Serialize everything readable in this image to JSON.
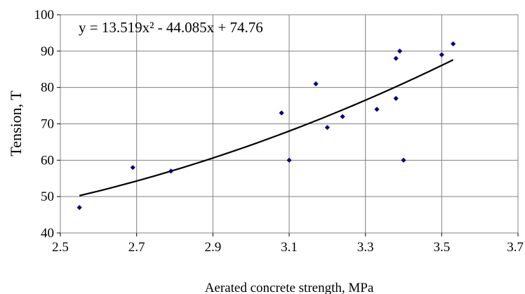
{
  "chart_data": {
    "type": "scatter",
    "title": "",
    "xlabel": "Aerated concrete strength, MPa",
    "ylabel": "Tension, T",
    "xlim": [
      2.5,
      3.7
    ],
    "ylim": [
      40,
      100
    ],
    "xticks": [
      2.5,
      2.7,
      2.9,
      3.1,
      3.3,
      3.5,
      3.7
    ],
    "xtick_labels": [
      "2.5",
      "2.7",
      "2.9",
      "3.1",
      "3.3",
      "3.5",
      "3.7"
    ],
    "yticks": [
      40,
      50,
      60,
      70,
      80,
      90,
      100
    ],
    "ytick_labels": [
      "40",
      "50",
      "60",
      "70",
      "80",
      "90",
      "100"
    ],
    "grid": true,
    "legend": "none",
    "marker_color": "#00007f",
    "trendline_color": "#000000",
    "series": [
      {
        "x": [
          2.55,
          2.69,
          2.79,
          3.08,
          3.1,
          3.17,
          3.2,
          3.24,
          3.33,
          3.38,
          3.38,
          3.39,
          3.4,
          3.5,
          3.53
        ],
        "y": [
          47,
          58,
          57,
          73,
          60,
          81,
          69,
          72,
          74,
          88,
          77,
          90,
          60,
          89,
          92
        ]
      }
    ],
    "trendline": {
      "type": "polynomial",
      "coefficients": [
        13.519,
        -44.085,
        74.76
      ],
      "x_range": [
        2.55,
        3.53
      ]
    },
    "annotations": [
      {
        "text": "y = 13.519x² - 44.085x + 74.76",
        "position": "top-left"
      }
    ]
  }
}
